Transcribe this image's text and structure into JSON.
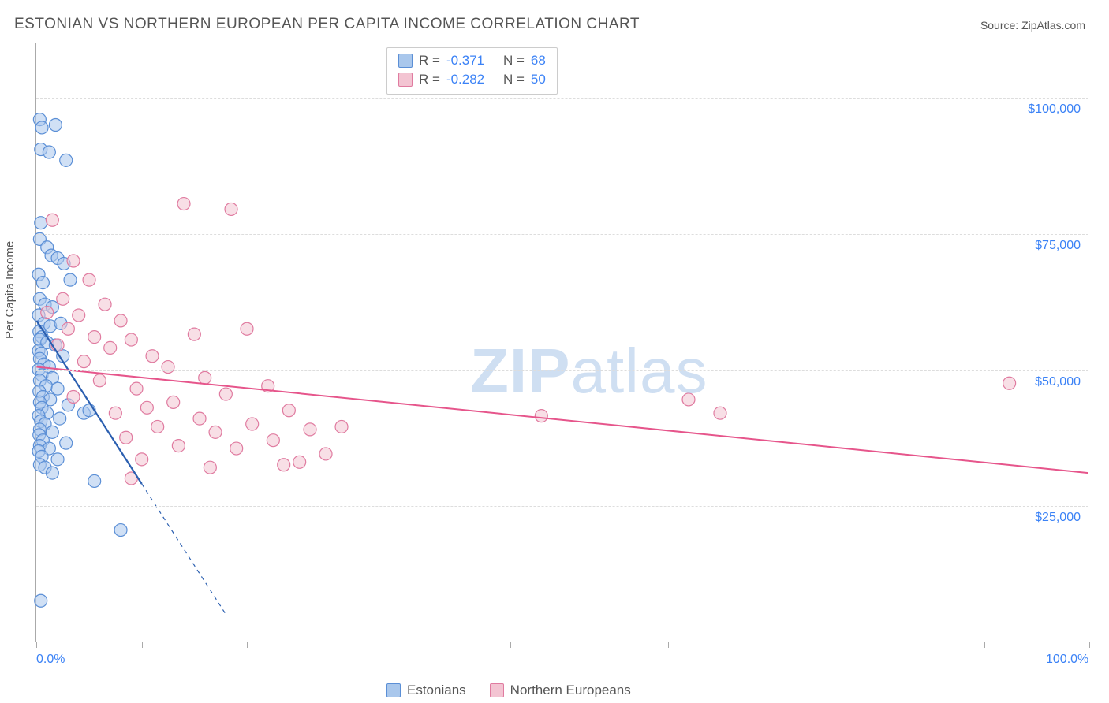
{
  "title": "ESTONIAN VS NORTHERN EUROPEAN PER CAPITA INCOME CORRELATION CHART",
  "source_label": "Source: ZipAtlas.com",
  "ylabel": "Per Capita Income",
  "watermark_a": "ZIP",
  "watermark_b": "atlas",
  "chart": {
    "type": "scatter",
    "background_color": "#ffffff",
    "grid_color": "#dddddd",
    "axis_color": "#aaaaaa",
    "xlim": [
      0,
      100
    ],
    "ylim": [
      0,
      110000
    ],
    "xtick_positions": [
      0,
      10,
      20,
      30,
      45,
      60,
      90,
      100
    ],
    "xtick_labels": {
      "0": "0.0%",
      "100": "100.0%"
    },
    "ytick_positions": [
      25000,
      50000,
      75000,
      100000
    ],
    "ytick_labels": [
      "$25,000",
      "$50,000",
      "$75,000",
      "$100,000"
    ],
    "label_fontsize": 16,
    "label_color": "#3b82f6",
    "marker_radius": 8,
    "marker_opacity": 0.55,
    "series": [
      {
        "name": "Estonians",
        "color_fill": "#a9c7ec",
        "color_stroke": "#5b8fd6",
        "R": "-0.371",
        "N": "68",
        "trend": {
          "x1": 0,
          "y1": 59000,
          "x2": 10,
          "y2": 29000,
          "dash_extend_x": 18,
          "dash_extend_y": 5000,
          "color": "#2b5fb0",
          "width": 2.2
        },
        "points": [
          [
            0.3,
            96000
          ],
          [
            0.5,
            94500
          ],
          [
            1.8,
            95000
          ],
          [
            0.4,
            90500
          ],
          [
            1.2,
            90000
          ],
          [
            2.8,
            88500
          ],
          [
            0.4,
            77000
          ],
          [
            0.3,
            74000
          ],
          [
            1.0,
            72500
          ],
          [
            1.4,
            71000
          ],
          [
            2.0,
            70500
          ],
          [
            2.6,
            69500
          ],
          [
            0.2,
            67500
          ],
          [
            0.6,
            66000
          ],
          [
            3.2,
            66500
          ],
          [
            0.3,
            63000
          ],
          [
            0.8,
            62000
          ],
          [
            1.5,
            61500
          ],
          [
            0.2,
            60000
          ],
          [
            0.7,
            58500
          ],
          [
            1.3,
            58000
          ],
          [
            2.3,
            58500
          ],
          [
            0.25,
            57000
          ],
          [
            0.5,
            56000
          ],
          [
            0.3,
            55500
          ],
          [
            1.0,
            55000
          ],
          [
            1.8,
            54500
          ],
          [
            0.2,
            53500
          ],
          [
            0.45,
            53000
          ],
          [
            2.5,
            52500
          ],
          [
            0.3,
            52000
          ],
          [
            0.7,
            51000
          ],
          [
            1.2,
            50500
          ],
          [
            0.2,
            50000
          ],
          [
            0.5,
            49000
          ],
          [
            1.5,
            48500
          ],
          [
            0.3,
            48000
          ],
          [
            0.9,
            47000
          ],
          [
            2.0,
            46500
          ],
          [
            0.25,
            46000
          ],
          [
            0.6,
            45000
          ],
          [
            1.3,
            44500
          ],
          [
            0.3,
            44000
          ],
          [
            3.0,
            43500
          ],
          [
            0.5,
            43000
          ],
          [
            1.0,
            42000
          ],
          [
            0.2,
            41500
          ],
          [
            2.2,
            41000
          ],
          [
            0.4,
            40500
          ],
          [
            0.8,
            40000
          ],
          [
            4.5,
            42000
          ],
          [
            5.0,
            42500
          ],
          [
            0.3,
            39000
          ],
          [
            1.5,
            38500
          ],
          [
            0.25,
            38000
          ],
          [
            0.6,
            37000
          ],
          [
            2.8,
            36500
          ],
          [
            0.3,
            36000
          ],
          [
            1.2,
            35500
          ],
          [
            0.2,
            35000
          ],
          [
            0.5,
            34000
          ],
          [
            2.0,
            33500
          ],
          [
            0.3,
            32500
          ],
          [
            0.8,
            32000
          ],
          [
            1.5,
            31000
          ],
          [
            5.5,
            29500
          ],
          [
            8.0,
            20500
          ],
          [
            0.4,
            7500
          ]
        ]
      },
      {
        "name": "Northern Europeans",
        "color_fill": "#f3c4d2",
        "color_stroke": "#e07ba0",
        "R": "-0.282",
        "N": "50",
        "trend": {
          "x1": 0,
          "y1": 50500,
          "x2": 100,
          "y2": 31000,
          "color": "#e6558b",
          "width": 2
        },
        "points": [
          [
            1.5,
            77500
          ],
          [
            3.5,
            70000
          ],
          [
            5.0,
            66500
          ],
          [
            2.5,
            63000
          ],
          [
            6.5,
            62000
          ],
          [
            1.0,
            60500
          ],
          [
            4.0,
            60000
          ],
          [
            8.0,
            59000
          ],
          [
            14.0,
            80500
          ],
          [
            18.5,
            79500
          ],
          [
            3.0,
            57500
          ],
          [
            5.5,
            56000
          ],
          [
            9.0,
            55500
          ],
          [
            20.0,
            57500
          ],
          [
            2.0,
            54500
          ],
          [
            7.0,
            54000
          ],
          [
            11.0,
            52500
          ],
          [
            15.0,
            56500
          ],
          [
            4.5,
            51500
          ],
          [
            12.5,
            50500
          ],
          [
            16.0,
            48500
          ],
          [
            22.0,
            47000
          ],
          [
            6.0,
            48000
          ],
          [
            9.5,
            46500
          ],
          [
            18.0,
            45500
          ],
          [
            3.5,
            45000
          ],
          [
            13.0,
            44000
          ],
          [
            10.5,
            43000
          ],
          [
            24.0,
            42500
          ],
          [
            7.5,
            42000
          ],
          [
            15.5,
            41000
          ],
          [
            20.5,
            40000
          ],
          [
            11.5,
            39500
          ],
          [
            26.0,
            39000
          ],
          [
            17.0,
            38500
          ],
          [
            29.0,
            39500
          ],
          [
            8.5,
            37500
          ],
          [
            22.5,
            37000
          ],
          [
            13.5,
            36000
          ],
          [
            19.0,
            35500
          ],
          [
            27.5,
            34500
          ],
          [
            10.0,
            33500
          ],
          [
            23.5,
            32500
          ],
          [
            16.5,
            32000
          ],
          [
            9.0,
            30000
          ],
          [
            48.0,
            41500
          ],
          [
            62.0,
            44500
          ],
          [
            65.0,
            42000
          ],
          [
            92.5,
            47500
          ],
          [
            25.0,
            33000
          ]
        ]
      }
    ]
  },
  "stats_labels": {
    "R": "R =",
    "N": "N ="
  },
  "stats_value_color": "#3b82f6",
  "legend": {
    "items": [
      "Estonians",
      "Northern Europeans"
    ]
  }
}
